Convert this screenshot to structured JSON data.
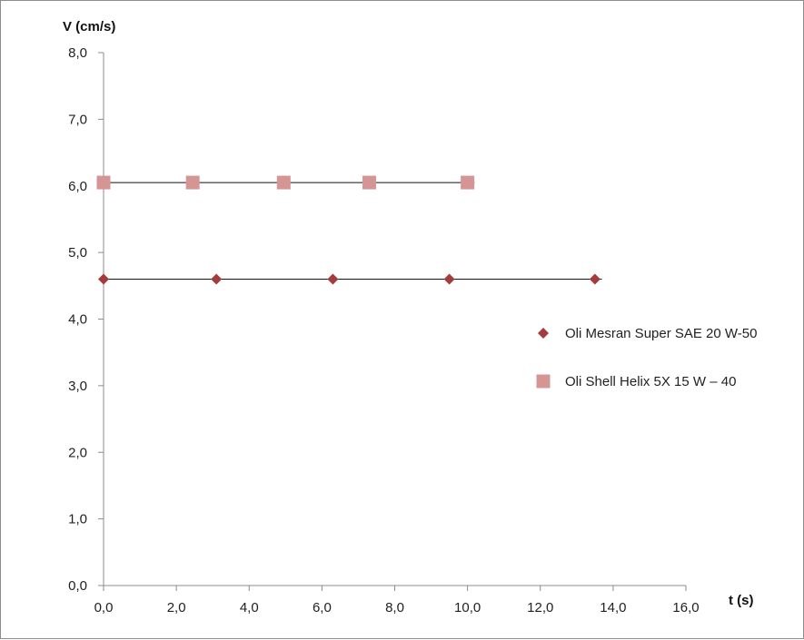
{
  "chart_data": {
    "type": "scatter",
    "title": "",
    "xlabel": "t  (s)",
    "ylabel": "V (cm/s)",
    "xlim": [
      0,
      16
    ],
    "ylim": [
      0,
      8
    ],
    "x_ticks": [
      "0,0",
      "2,0",
      "4,0",
      "6,0",
      "8,0",
      "10,0",
      "12,0",
      "14,0",
      "16,0"
    ],
    "y_ticks": [
      "0,0",
      "1,0",
      "2,0",
      "3,0",
      "4,0",
      "5,0",
      "6,0",
      "7,0",
      "8,0"
    ],
    "grid": false,
    "legend_position": "right",
    "series": [
      {
        "name": "Oli Mesran Super SAE 20 W-50",
        "marker": "diamond",
        "color": "#a33c3a",
        "trendline": true,
        "x": [
          0.0,
          3.1,
          6.3,
          9.5,
          13.5
        ],
        "y": [
          4.6,
          4.6,
          4.6,
          4.6,
          4.6
        ]
      },
      {
        "name": "Oli Shell Helix 5X 15 W – 40",
        "marker": "square",
        "color": "#d59595",
        "trendline": true,
        "x": [
          0.0,
          2.45,
          4.95,
          7.3,
          10.0
        ],
        "y": [
          6.05,
          6.05,
          6.05,
          6.05,
          6.05
        ]
      }
    ]
  }
}
